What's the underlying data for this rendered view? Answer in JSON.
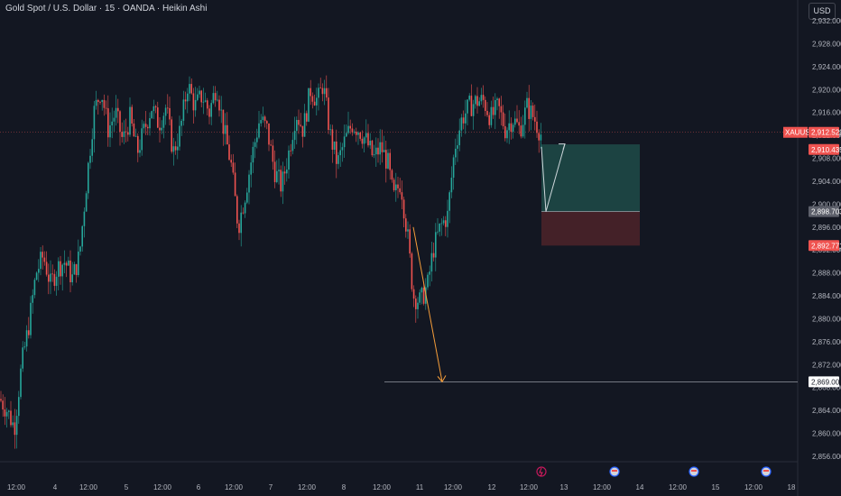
{
  "header": {
    "title": "Gold Spot / U.S. Dollar · 15 · OANDA · Heikin Ashi",
    "currency_button": "USD"
  },
  "colors": {
    "background": "#131722",
    "up": "#26a69a",
    "down": "#ef5350",
    "grid": "#1e222d",
    "axis_text": "#b2b5be",
    "target_zone": "#1f4b48",
    "stop_zone": "#4a2229",
    "projection_arrow": "#f59d3a",
    "trade_arrow": "#cfd8dc",
    "target_line": "#9598a1"
  },
  "chart_data": {
    "type": "candlestick",
    "symbol": "XAUUSD",
    "ylim": [
      2854,
      2936
    ],
    "y_ticks": [
      "2,932.000",
      "2,928.000",
      "2,924.000",
      "2,920.000",
      "2,916.000",
      "2,912.000",
      "2,908.000",
      "2,904.000",
      "2,900.000",
      "2,896.000",
      "2,892.000",
      "2,888.000",
      "2,884.000",
      "2,880.000",
      "2,876.000",
      "2,872.000",
      "2,868.000",
      "2,864.000",
      "2,860.000",
      "2,856.000"
    ],
    "y_tick_values": [
      2932,
      2928,
      2924,
      2920,
      2916,
      2912,
      2908,
      2904,
      2900,
      2896,
      2892,
      2888,
      2884,
      2880,
      2876,
      2872,
      2868,
      2864,
      2860,
      2856
    ],
    "x_ticks": [
      "12:00",
      "4",
      "12:00",
      "5",
      "12:00",
      "6",
      "12:00",
      "7",
      "12:00",
      "8",
      "12:00",
      "11",
      "12:00",
      "12",
      "12:00",
      "13",
      "12:00",
      "14",
      "12:00",
      "15",
      "12:00",
      "18"
    ],
    "series_trend": [
      [
        0,
        2866
      ],
      [
        8,
        2864
      ],
      [
        16,
        2861
      ],
      [
        24,
        2872
      ],
      [
        32,
        2879
      ],
      [
        40,
        2888
      ],
      [
        48,
        2891
      ],
      [
        56,
        2886
      ],
      [
        64,
        2889
      ],
      [
        72,
        2890
      ],
      [
        80,
        2887
      ],
      [
        88,
        2891
      ],
      [
        96,
        2904
      ],
      [
        104,
        2916
      ],
      [
        112,
        2920
      ],
      [
        120,
        2913
      ],
      [
        128,
        2916
      ],
      [
        136,
        2911
      ],
      [
        144,
        2915
      ],
      [
        152,
        2909
      ],
      [
        160,
        2913
      ],
      [
        168,
        2917
      ],
      [
        176,
        2914
      ],
      [
        184,
        2917
      ],
      [
        192,
        2909
      ],
      [
        200,
        2913
      ],
      [
        208,
        2921
      ],
      [
        216,
        2917
      ],
      [
        224,
        2919
      ],
      [
        232,
        2916
      ],
      [
        240,
        2921
      ],
      [
        248,
        2913
      ],
      [
        256,
        2907
      ],
      [
        264,
        2896
      ],
      [
        272,
        2902
      ],
      [
        280,
        2909
      ],
      [
        288,
        2915
      ],
      [
        296,
        2913
      ],
      [
        304,
        2906
      ],
      [
        312,
        2903
      ],
      [
        320,
        2909
      ],
      [
        328,
        2916
      ],
      [
        336,
        2913
      ],
      [
        344,
        2920
      ],
      [
        352,
        2918
      ],
      [
        358,
        2921
      ],
      [
        366,
        2912
      ],
      [
        374,
        2907
      ],
      [
        382,
        2911
      ],
      [
        390,
        2914
      ],
      [
        398,
        2913
      ],
      [
        406,
        2911
      ],
      [
        414,
        2908
      ],
      [
        422,
        2910
      ],
      [
        430,
        2907
      ],
      [
        436,
        2901
      ],
      [
        444,
        2904
      ],
      [
        452,
        2894
      ],
      [
        458,
        2884
      ],
      [
        466,
        2883
      ],
      [
        474,
        2886
      ],
      [
        480,
        2892
      ],
      [
        488,
        2896
      ],
      [
        496,
        2898
      ],
      [
        504,
        2910
      ],
      [
        512,
        2915
      ],
      [
        520,
        2917
      ],
      [
        528,
        2918
      ],
      [
        536,
        2918
      ],
      [
        544,
        2915
      ],
      [
        552,
        2917
      ],
      [
        560,
        2913
      ],
      [
        568,
        2915
      ],
      [
        576,
        2913
      ],
      [
        584,
        2917
      ],
      [
        592,
        2915
      ],
      [
        600,
        2912
      ]
    ],
    "price_labels": {
      "current_symbol": "XAUUSD",
      "current": "2,912.529",
      "secondary": "2,910.435",
      "entry": "2,898.703",
      "stop": "2,892.771",
      "target": "2,869.002"
    },
    "price_label_values": {
      "current": 2912.529,
      "secondary": 2910.435,
      "entry": 2898.703,
      "stop": 2892.771,
      "target": 2869.002
    },
    "position": {
      "entry": 2898.703,
      "target_top": 2910.435,
      "stop": 2892.771
    },
    "projection": {
      "from": [
        458,
        2896
      ],
      "to": [
        490,
        2869
      ]
    },
    "trade_path": [
      [
        600,
        2910
      ],
      [
        605,
        2898.7
      ],
      [
        626,
        2910.5
      ]
    ],
    "horizontal_target_line": 2869.002
  }
}
